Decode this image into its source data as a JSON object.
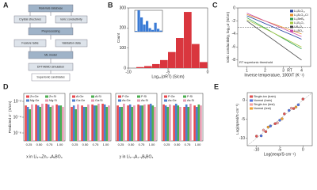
{
  "panels": [
    "A",
    "B",
    "C",
    "D",
    "E"
  ],
  "diagram": {
    "nodes": [
      "Materials database",
      "Crystal structures",
      "Ionic conductivity",
      "Preprocessing",
      "Feature table",
      "Validation data",
      "ML model",
      "DFT/AIMD simulation",
      "Superionic candidates"
    ]
  },
  "chart_data": [
    {
      "type": "histogram",
      "xlabel": "Log₁₀(σRT) (S/cm)",
      "ylabel": "Count",
      "bins": [
        -9,
        -8,
        -7,
        -6,
        -5,
        -4,
        -3,
        -2,
        -1,
        0
      ],
      "counts": [
        5,
        10,
        20,
        40,
        80,
        150,
        280,
        120,
        30
      ],
      "color": "#d9363e",
      "xlim": [
        -10,
        0
      ],
      "xticks": [
        -10,
        -5,
        0
      ],
      "ylim": [
        0,
        300
      ],
      "yticks": [
        0,
        100,
        200,
        300
      ]
    },
    {
      "type": "histogram",
      "inset": true,
      "bins": [
        -10,
        -9,
        -8,
        -7,
        -6,
        -5,
        -4,
        -3,
        -2,
        -1,
        0
      ],
      "counts": [
        2,
        60,
        40,
        20,
        30,
        10,
        5,
        25,
        8,
        3
      ],
      "color": "#3a7bd5",
      "xlim": [
        -10,
        0
      ],
      "ylim": [
        0,
        60
      ]
    },
    {
      "type": "line",
      "xlabel": "Inverse temperature, 1000/T (K⁻¹)",
      "ylabel": "Ionic conductivity, log₁₀σ (S/cm)",
      "annotation": "RT superionic threshold",
      "threshold": -3,
      "x": [
        1,
        1.5,
        2,
        2.5,
        3,
        3.5,
        4
      ],
      "xlim": [
        0.5,
        4.5
      ],
      "xticks": [
        1,
        2,
        3,
        {
          "value": 3.35,
          "label": "RT"
        },
        4
      ],
      "ylim": [
        -9,
        0
      ],
      "yticks": [
        -8,
        -6,
        -4,
        -2,
        0
      ],
      "series": [
        {
          "name": "Li₃B₇O₁₂",
          "color": "#1f3fa0",
          "values": [
            -1.2,
            -1.8,
            -2.4,
            -3,
            -3.6,
            -4.2,
            -4.8
          ]
        },
        {
          "name": "Li₄B₇O₁₂Cl",
          "color": "#e8902a",
          "values": [
            -1,
            -1.5,
            -2,
            -2.5,
            -3,
            -3.5,
            -4
          ]
        },
        {
          "name": "Li₆BeB₆",
          "color": "#2e9e4a",
          "values": [
            -1.5,
            -2.3,
            -3.1,
            -3.9,
            -4.7,
            -5.5,
            -6.3
          ]
        },
        {
          "name": "Li₂B₄O₇",
          "color": "#a6c93a",
          "values": [
            -1.8,
            -2.5,
            -3.2,
            -3.9,
            -4.6,
            -5.3,
            -6
          ]
        },
        {
          "name": "LiB₃O₅",
          "color": "#444444",
          "values": [
            -2,
            -3,
            -4,
            -5,
            -6,
            -7,
            -8
          ]
        },
        {
          "name": "Li₃BO₃",
          "color": "#c94aa8",
          "values": [
            -0.8,
            -1.4,
            -2,
            -2.6,
            -3.2,
            -3.8,
            -4.4
          ]
        }
      ]
    },
    {
      "type": "bar",
      "ylabel": "Predicted σ⁻ (S/cm)",
      "xlabel": "x in Li₃₊ₓZn₁₋ₓAₓBO₄",
      "log_y": true,
      "categories": [
        "0.25",
        "0.50",
        "0.75",
        "1.00"
      ],
      "ylim": [
        1e-07,
        0.1
      ],
      "yticks": [
        {
          "value": 1e-06,
          "label": "10⁻⁶"
        },
        {
          "value": 0.0001,
          "label": "10⁻⁴"
        },
        {
          "value": 0.01,
          "label": "10⁻²"
        }
      ],
      "series": [
        {
          "name": "Zn:Ge",
          "color": "#e8474c",
          "values": [
            0.003,
            0.004,
            0.005,
            0.004
          ]
        },
        {
          "name": "Mg:Ge",
          "color": "#4f7fd1",
          "values": [
            0.002,
            0.003,
            0.004,
            0.003
          ]
        },
        {
          "name": "Zn:Si",
          "color": "#4caf50",
          "values": [
            0.001,
            0.002,
            0.002,
            0.003
          ]
        },
        {
          "name": "Mg:Si",
          "color": "#e79ab0",
          "values": [
            0.004,
            0.005,
            0.003,
            0.002
          ]
        }
      ]
    },
    {
      "type": "bar",
      "log_y": true,
      "categories": [
        "0.25",
        "0.50",
        "0.75",
        "1.00"
      ],
      "ylim": [
        1e-07,
        0.1
      ],
      "series": [
        {
          "name": "Al:Ge",
          "color": "#e8474c",
          "values": [
            0.002,
            0.003,
            0.004,
            0.005
          ]
        },
        {
          "name": "Ga:Ge",
          "color": "#4f7fd1",
          "values": [
            0.003,
            0.002,
            0.003,
            0.004
          ]
        },
        {
          "name": "Al:Si",
          "color": "#4caf50",
          "values": [
            0.001,
            0.002,
            0.003,
            0.002
          ]
        },
        {
          "name": "Ga:Si",
          "color": "#e79ab0",
          "values": [
            0.004,
            0.004,
            0.005,
            0.003
          ]
        }
      ]
    },
    {
      "type": "bar",
      "xlabel": "y in Li₃₋ᵧA₁₋ᵧBᵧBO₄",
      "log_y": true,
      "categories": [
        "0.25",
        "0.50",
        "0.75",
        "1.00"
      ],
      "ylim": [
        1e-07,
        0.1
      ],
      "series": [
        {
          "name": "P:Ge",
          "color": "#e8474c",
          "values": [
            0.003,
            0.003,
            0.004,
            0.004
          ]
        },
        {
          "name": "As:Ge",
          "color": "#4f7fd1",
          "values": [
            0.002,
            0.004,
            0.003,
            0.005
          ]
        },
        {
          "name": "P:Si",
          "color": "#4caf50",
          "values": [
            0.002,
            0.002,
            0.003,
            0.003
          ]
        },
        {
          "name": "As:Si",
          "color": "#e79ab0",
          "values": [
            0.005,
            0.003,
            0.004,
            0.002
          ]
        }
      ]
    },
    {
      "type": "bar",
      "log_y": true,
      "categories": [
        "0.25",
        "0.50",
        "0.75",
        "1.00"
      ],
      "ylim": [
        1e-07,
        0.1
      ],
      "series": [
        {
          "name": "P:Ge",
          "color": "#e8474c",
          "values": [
            0.004,
            0.003,
            0.002,
            0.003
          ]
        },
        {
          "name": "As:Ge",
          "color": "#4f7fd1",
          "values": [
            0.003,
            0.005,
            0.004,
            0.002
          ]
        },
        {
          "name": "P:Si",
          "color": "#4caf50",
          "values": [
            0.002,
            0.003,
            0.002,
            0.004
          ]
        },
        {
          "name": "As:Si",
          "color": "#e79ab0",
          "values": [
            0.004,
            0.002,
            0.005,
            0.003
          ]
        }
      ]
    },
    {
      "type": "scatter",
      "xlabel": "Log(σexp/S·cm⁻¹)",
      "ylabel": "Log(σpred/S·cm⁻¹)",
      "xlim": [
        -12,
        2
      ],
      "ylim": [
        -12,
        2
      ],
      "xticks": [
        -10,
        -5,
        0
      ],
      "yticks": [
        -10,
        -5,
        0
      ],
      "series": [
        {
          "name": "Single-ion (train)",
          "color": "#e05050",
          "x": [
            -10,
            -8,
            -6,
            -4,
            -2,
            0
          ],
          "y": [
            -9.5,
            -8.3,
            -6.2,
            -3.6,
            -2.2,
            0.3
          ]
        },
        {
          "name": "Normal (train)",
          "color": "#5070e0",
          "x": [
            -9,
            -7,
            -5,
            -3,
            -1
          ],
          "y": [
            -9.4,
            -6.8,
            -5.3,
            -2.7,
            -1.2
          ]
        },
        {
          "name": "Single-ion (test)",
          "color": "#f5a0a0",
          "x": [
            -8.5,
            -5.5,
            -2.5
          ],
          "y": [
            -7.9,
            -6,
            -2.1
          ]
        },
        {
          "name": "Normal (test)",
          "color": "#f0a030",
          "x": [
            -7.5,
            -4.5,
            -1.5
          ],
          "y": [
            -7.1,
            -4.9,
            -1.8
          ]
        }
      ]
    }
  ]
}
